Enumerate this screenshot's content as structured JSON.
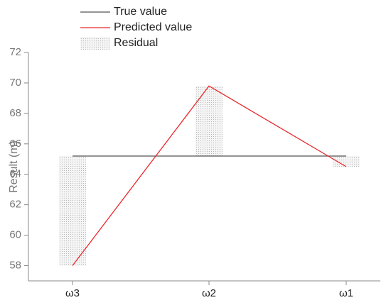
{
  "chart_data": {
    "type": "line",
    "y_label": "Result (m)",
    "categories": [
      "ω3",
      "ω2",
      "ω1"
    ],
    "series": [
      {
        "name": "True value",
        "color": "#555555",
        "values": [
          65.2,
          65.2,
          65.2
        ]
      },
      {
        "name": "Predicted value",
        "color": "#e8282b",
        "values": [
          58,
          69.8,
          64.5
        ]
      },
      {
        "name": "Residual",
        "color": "#bbbbbb",
        "values": [
          -7.2,
          4.6,
          -0.7
        ]
      }
    ],
    "ylim": [
      57,
      72
    ],
    "yticks": [
      58,
      60,
      62,
      64,
      66,
      68,
      70,
      72
    ]
  }
}
